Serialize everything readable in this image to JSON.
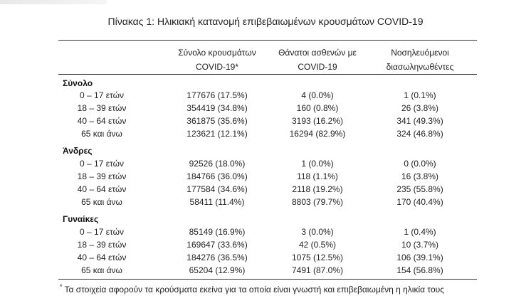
{
  "title": "Πίνακας 1: Ηλικιακή κατανομή επιβεβαιωμένων κρουσμάτων COVID-19",
  "headers": {
    "col1": [
      "Σύνολο κρουσμάτων",
      "COVID-19*"
    ],
    "col2": [
      "Θάνατοι ασθενών με",
      "COVID-19"
    ],
    "col3": [
      "Νοσηλευόμενοι",
      "διασωληνωθέντες"
    ]
  },
  "groups": [
    {
      "name": "Σύνολο",
      "rows": [
        {
          "age": "0 – 17 ετών",
          "cases": "177676 (17.5%)",
          "deaths": "4 (0.0%)",
          "intubated": "1 (0.1%)"
        },
        {
          "age": "18 – 39 ετών",
          "cases": "354419 (34.8%)",
          "deaths": "160 (0.8%)",
          "intubated": "26 (3.8%)"
        },
        {
          "age": "40 – 64 ετών",
          "cases": "361875 (35.6%)",
          "deaths": "3193 (16.2%)",
          "intubated": "341 (49.3%)"
        },
        {
          "age": "65 και άνω",
          "cases": "123621 (12.1%)",
          "deaths": "16294 (82.9%)",
          "intubated": "324 (46.8%)"
        }
      ]
    },
    {
      "name": "Άνδρες",
      "rows": [
        {
          "age": "0 – 17 ετών",
          "cases": "92526 (18.0%)",
          "deaths": "1 (0.0%)",
          "intubated": "0 (0.0%)"
        },
        {
          "age": "18 – 39 ετών",
          "cases": "184766 (36.0%)",
          "deaths": "118 (1.1%)",
          "intubated": "16 (3.8%)"
        },
        {
          "age": "40 – 64 ετών",
          "cases": "177584 (34.6%)",
          "deaths": "2118 (19.2%)",
          "intubated": "235 (55.8%)"
        },
        {
          "age": "65 και άνω",
          "cases": "58411 (11.4%)",
          "deaths": "8803 (79.7%)",
          "intubated": "170 (40.4%)"
        }
      ]
    },
    {
      "name": "Γυναίκες",
      "rows": [
        {
          "age": "0 – 17 ετών",
          "cases": "85149 (16.9%)",
          "deaths": "3 (0.0%)",
          "intubated": "1 (0.4%)"
        },
        {
          "age": "18 – 39 ετών",
          "cases": "169647 (33.6%)",
          "deaths": "42 (0.5%)",
          "intubated": "10 (3.7%)"
        },
        {
          "age": "40 – 64 ετών",
          "cases": "184276 (36.5%)",
          "deaths": "1075 (12.5%)",
          "intubated": "106 (39.1%)"
        },
        {
          "age": "65 και άνω",
          "cases": "65204 (12.9%)",
          "deaths": "7491 (87.0%)",
          "intubated": "154 (56.8%)"
        }
      ]
    }
  ],
  "footnote": {
    "marker": "*",
    "text": "Τα στοιχεία αφορούν τα κρούσματα εκείνα για τα οποία είναι γνωστή και επιβεβαιωμένη η ηλικία τους"
  }
}
